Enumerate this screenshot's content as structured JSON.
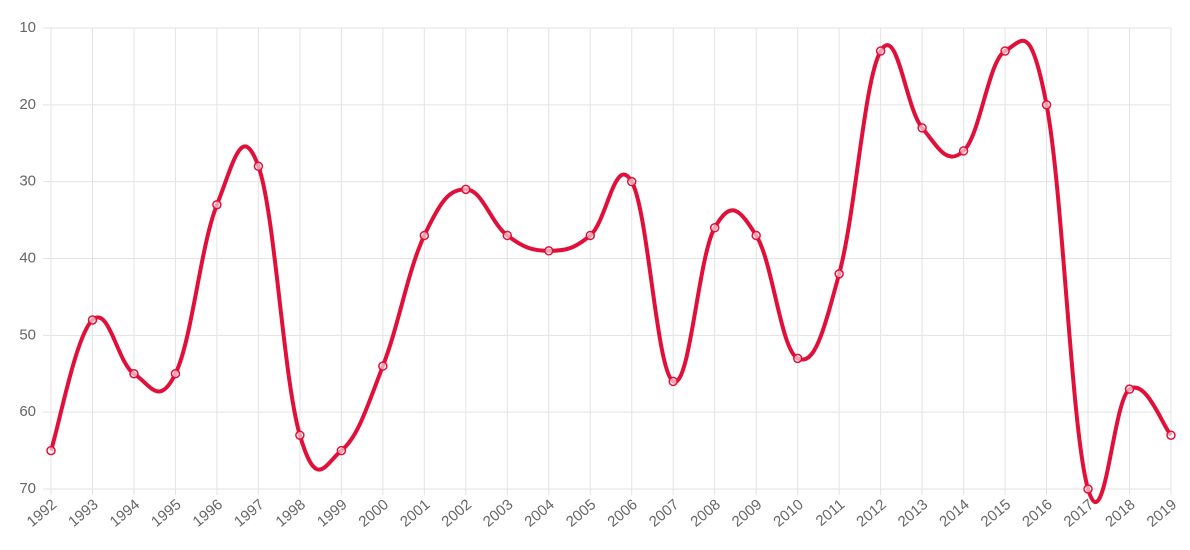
{
  "chart_data": {
    "type": "line",
    "categories": [
      "1992",
      "1993",
      "1994",
      "1995",
      "1996",
      "1997",
      "1998",
      "1999",
      "2000",
      "2001",
      "2002",
      "2003",
      "2004",
      "2005",
      "2006",
      "2007",
      "2008",
      "2009",
      "2010",
      "2011",
      "2012",
      "2013",
      "2014",
      "2015",
      "2016",
      "2017",
      "2018",
      "2019"
    ],
    "values": [
      65,
      48,
      55,
      55,
      33,
      28,
      63,
      65,
      54,
      37,
      31,
      37,
      39,
      37,
      30,
      56,
      36,
      37,
      53,
      42,
      13,
      23,
      26,
      13,
      20,
      70,
      57,
      63
    ],
    "color": "#e0103a",
    "ylim": [
      10,
      70
    ],
    "yticks": [
      10,
      20,
      30,
      40,
      50,
      60,
      70
    ],
    "y_reversed": true,
    "grid": true
  }
}
